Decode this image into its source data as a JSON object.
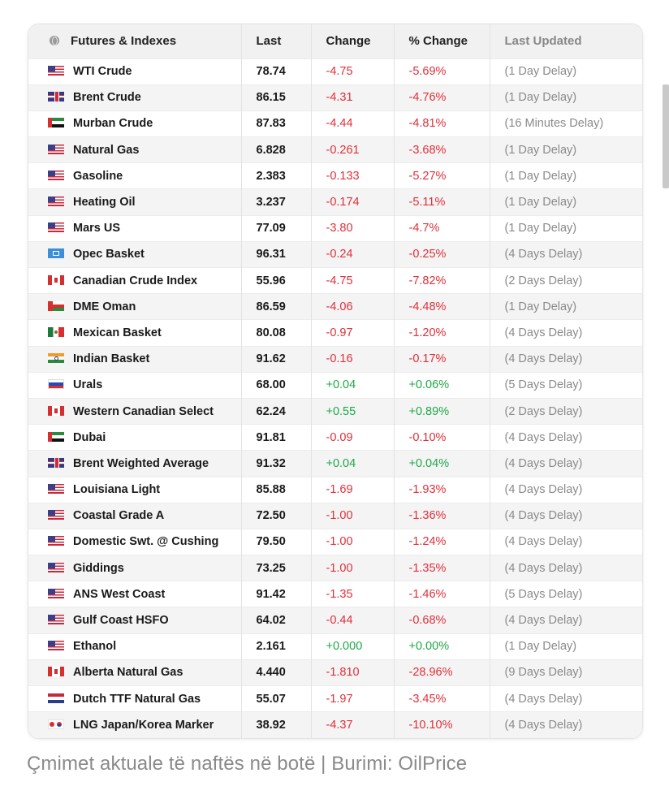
{
  "table": {
    "headers": {
      "name": "Futures & Indexes",
      "last": "Last",
      "change": "Change",
      "pct_change": "% Change",
      "updated": "Last Updated"
    },
    "rows": [
      {
        "flag": "us",
        "name": "WTI Crude",
        "last": "78.74",
        "change": "-4.75",
        "pct": "-5.69%",
        "updated": "(1 Day Delay)",
        "dir": "neg"
      },
      {
        "flag": "uk",
        "name": "Brent Crude",
        "last": "86.15",
        "change": "-4.31",
        "pct": "-4.76%",
        "updated": "(1 Day Delay)",
        "dir": "neg"
      },
      {
        "flag": "ae",
        "name": "Murban Crude",
        "last": "87.83",
        "change": "-4.44",
        "pct": "-4.81%",
        "updated": "(16 Minutes Delay)",
        "dir": "neg"
      },
      {
        "flag": "us",
        "name": "Natural Gas",
        "last": "6.828",
        "change": "-0.261",
        "pct": "-3.68%",
        "updated": "(1 Day Delay)",
        "dir": "neg"
      },
      {
        "flag": "us",
        "name": "Gasoline",
        "last": "2.383",
        "change": "-0.133",
        "pct": "-5.27%",
        "updated": "(1 Day Delay)",
        "dir": "neg"
      },
      {
        "flag": "us",
        "name": "Heating Oil",
        "last": "3.237",
        "change": "-0.174",
        "pct": "-5.11%",
        "updated": "(1 Day Delay)",
        "dir": "neg"
      },
      {
        "flag": "us",
        "name": "Mars US",
        "last": "77.09",
        "change": "-3.80",
        "pct": "-4.7%",
        "updated": "(1 Day Delay)",
        "dir": "neg"
      },
      {
        "flag": "opec",
        "name": "Opec Basket",
        "last": "96.31",
        "change": "-0.24",
        "pct": "-0.25%",
        "updated": "(4 Days Delay)",
        "dir": "neg"
      },
      {
        "flag": "ca",
        "name": "Canadian Crude Index",
        "last": "55.96",
        "change": "-4.75",
        "pct": "-7.82%",
        "updated": "(2 Days Delay)",
        "dir": "neg"
      },
      {
        "flag": "om",
        "name": "DME Oman",
        "last": "86.59",
        "change": "-4.06",
        "pct": "-4.48%",
        "updated": "(1 Day Delay)",
        "dir": "neg"
      },
      {
        "flag": "mx",
        "name": "Mexican Basket",
        "last": "80.08",
        "change": "-0.97",
        "pct": "-1.20%",
        "updated": "(4 Days Delay)",
        "dir": "neg"
      },
      {
        "flag": "in",
        "name": "Indian Basket",
        "last": "91.62",
        "change": "-0.16",
        "pct": "-0.17%",
        "updated": "(4 Days Delay)",
        "dir": "neg"
      },
      {
        "flag": "ru",
        "name": "Urals",
        "last": "68.00",
        "change": "+0.04",
        "pct": "+0.06%",
        "updated": "(5 Days Delay)",
        "dir": "pos"
      },
      {
        "flag": "ca",
        "name": "Western Canadian Select",
        "last": "62.24",
        "change": "+0.55",
        "pct": "+0.89%",
        "updated": "(2 Days Delay)",
        "dir": "pos"
      },
      {
        "flag": "ae",
        "name": "Dubai",
        "last": "91.81",
        "change": "-0.09",
        "pct": "-0.10%",
        "updated": "(4 Days Delay)",
        "dir": "neg"
      },
      {
        "flag": "uk",
        "name": "Brent Weighted Average",
        "last": "91.32",
        "change": "+0.04",
        "pct": "+0.04%",
        "updated": "(4 Days Delay)",
        "dir": "pos"
      },
      {
        "flag": "us",
        "name": "Louisiana Light",
        "last": "85.88",
        "change": "-1.69",
        "pct": "-1.93%",
        "updated": "(4 Days Delay)",
        "dir": "neg"
      },
      {
        "flag": "us",
        "name": "Coastal Grade A",
        "last": "72.50",
        "change": "-1.00",
        "pct": "-1.36%",
        "updated": "(4 Days Delay)",
        "dir": "neg"
      },
      {
        "flag": "us",
        "name": "Domestic Swt. @ Cushing",
        "last": "79.50",
        "change": "-1.00",
        "pct": "-1.24%",
        "updated": "(4 Days Delay)",
        "dir": "neg"
      },
      {
        "flag": "us",
        "name": "Giddings",
        "last": "73.25",
        "change": "-1.00",
        "pct": "-1.35%",
        "updated": "(4 Days Delay)",
        "dir": "neg"
      },
      {
        "flag": "us",
        "name": "ANS West Coast",
        "last": "91.42",
        "change": "-1.35",
        "pct": "-1.46%",
        "updated": "(5 Days Delay)",
        "dir": "neg"
      },
      {
        "flag": "us",
        "name": "Gulf Coast HSFO",
        "last": "64.02",
        "change": "-0.44",
        "pct": "-0.68%",
        "updated": "(4 Days Delay)",
        "dir": "neg"
      },
      {
        "flag": "us",
        "name": "Ethanol",
        "last": "2.161",
        "change": "+0.000",
        "pct": "+0.00%",
        "updated": "(1 Day Delay)",
        "dir": "pos"
      },
      {
        "flag": "ca",
        "name": "Alberta Natural Gas",
        "last": "4.440",
        "change": "-1.810",
        "pct": "-28.96%",
        "updated": "(9 Days Delay)",
        "dir": "neg"
      },
      {
        "flag": "nl",
        "name": "Dutch TTF Natural Gas",
        "last": "55.07",
        "change": "-1.97",
        "pct": "-3.45%",
        "updated": "(4 Days Delay)",
        "dir": "neg"
      },
      {
        "flag": "jpkr",
        "name": "LNG Japan/Korea Marker",
        "last": "38.92",
        "change": "-4.37",
        "pct": "-10.10%",
        "updated": "(4 Days Delay)",
        "dir": "neg"
      }
    ]
  },
  "caption": "Çmimet aktuale të naftës në botë | Burimi: OilPrice",
  "colors": {
    "negative": "#e0303a",
    "positive": "#1ea848"
  }
}
